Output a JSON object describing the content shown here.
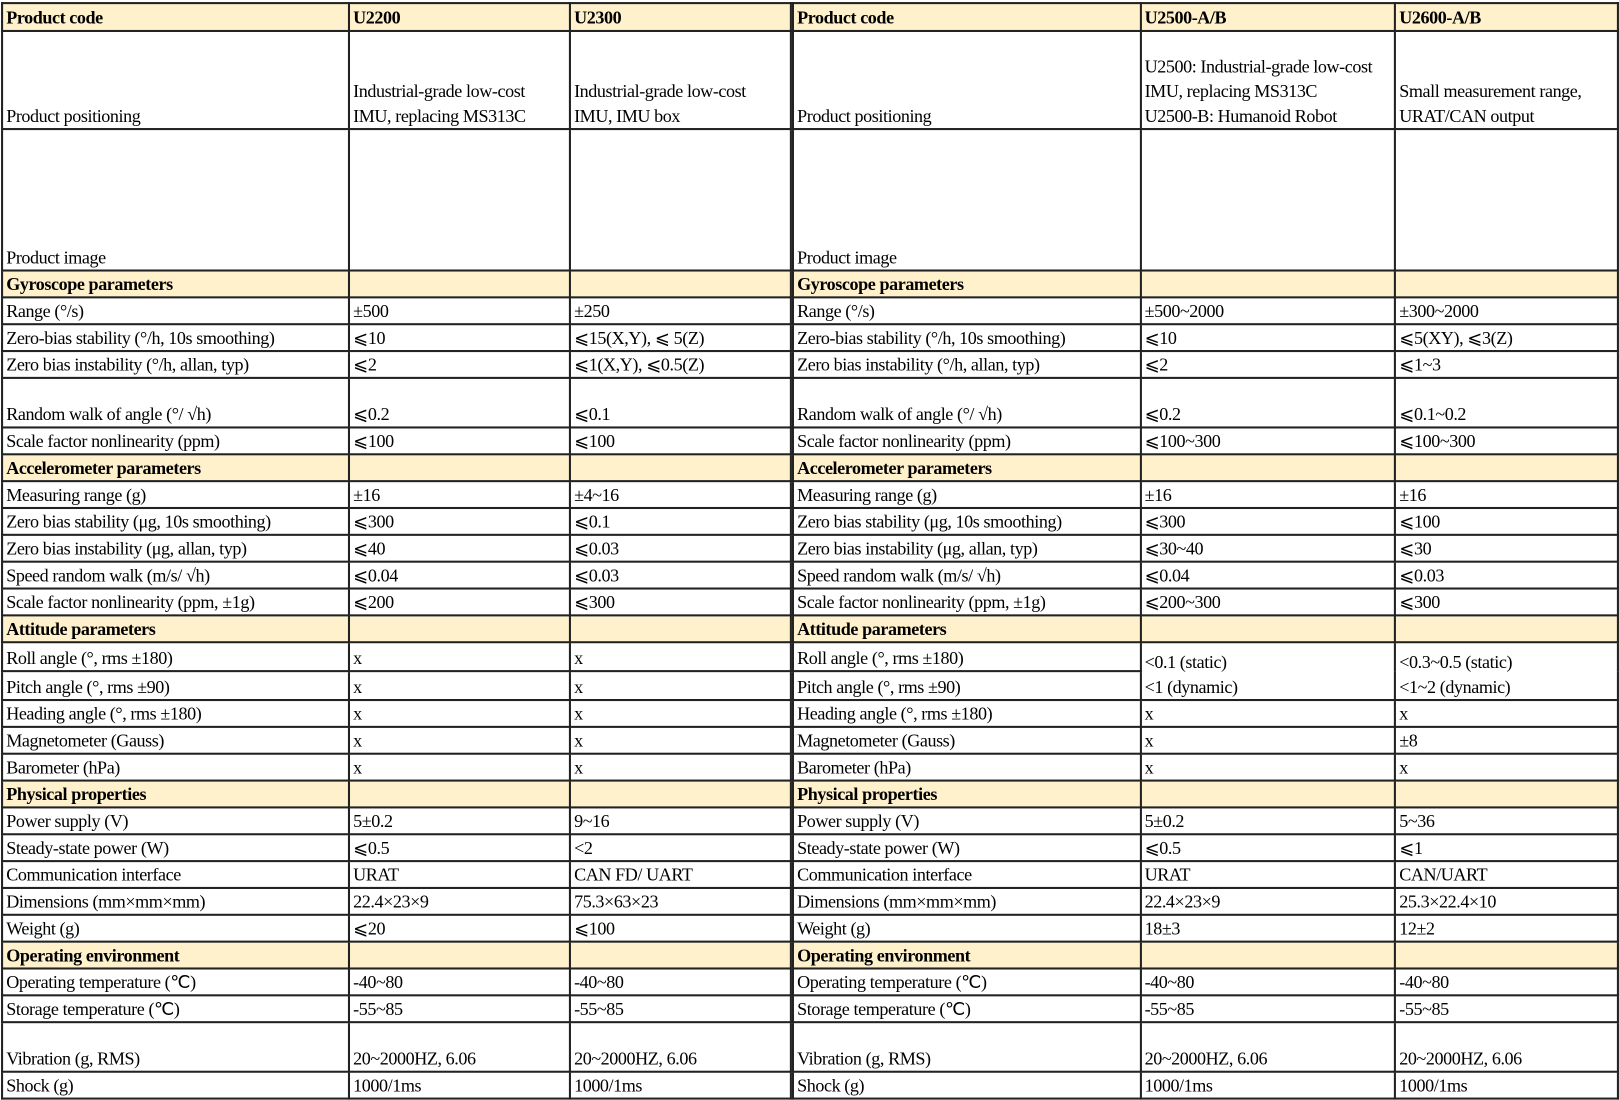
{
  "tables": [
    {
      "id": "left",
      "header": [
        "Product code",
        "U2200",
        "U2300"
      ],
      "positioning": {
        "label": "Product positioning",
        "values": [
          "Industrial-grade low-cost IMU, replacing MS313C",
          "Industrial-grade low-cost IMU, IMU box"
        ]
      },
      "image": {
        "label": "Product image",
        "values": [
          "imu-metal",
          "imu-box"
        ]
      },
      "rows": [
        {
          "type": "section",
          "label": "Gyroscope parameters"
        },
        {
          "label": "Range (°/s)",
          "values": [
            "±500",
            "±250"
          ]
        },
        {
          "label": "Zero-bias stability (°/h, 10s smoothing)",
          "values": [
            "⩽10",
            "⩽15(X,Y), ⩽ 5(Z)"
          ]
        },
        {
          "label": "Zero bias instability (°/h, allan, typ)",
          "values": [
            "⩽2",
            "⩽1(X,Y), ⩽0.5(Z)"
          ]
        },
        {
          "label": "Random walk of angle (°/ √h)",
          "values": [
            "⩽0.2",
            "⩽0.1"
          ],
          "tall": true
        },
        {
          "label": "Scale factor nonlinearity (ppm)",
          "values": [
            "⩽100",
            "⩽100"
          ]
        },
        {
          "type": "section",
          "label": "Accelerometer parameters"
        },
        {
          "label": "Measuring range (g)",
          "values": [
            "±16",
            "±4~16"
          ]
        },
        {
          "label": "Zero bias stability (μg, 10s smoothing)",
          "values": [
            "⩽300",
            "⩽0.1"
          ]
        },
        {
          "label": "Zero bias instability (μg, allan, typ)",
          "values": [
            "⩽40",
            "⩽0.03"
          ]
        },
        {
          "label": "Speed random walk (m/s/ √h)",
          "values": [
            "⩽0.04",
            "⩽0.03"
          ]
        },
        {
          "label": "Scale factor nonlinearity (ppm, ±1g)",
          "values": [
            "⩽200",
            "⩽300"
          ]
        },
        {
          "type": "section",
          "label": "Attitude parameters"
        },
        {
          "label": "Roll angle (°, rms ±180)",
          "values": [
            "x",
            "x"
          ]
        },
        {
          "label": "Pitch angle (°, rms ±90)",
          "values": [
            "x",
            "x"
          ]
        },
        {
          "label": "Heading angle (°, rms ±180)",
          "values": [
            "x",
            "x"
          ]
        },
        {
          "label": "Magnetometer (Gauss)",
          "values": [
            "x",
            "x"
          ]
        },
        {
          "label": "Barometer (hPa)",
          "values": [
            "x",
            "x"
          ]
        },
        {
          "type": "section",
          "label": "Physical properties"
        },
        {
          "label": "Power supply (V)",
          "values": [
            "5±0.2",
            "9~16"
          ]
        },
        {
          "label": "Steady-state power (W)",
          "values": [
            "⩽0.5",
            "<2"
          ]
        },
        {
          "label": "Communication interface",
          "values": [
            "URAT",
            "CAN FD/ UART"
          ]
        },
        {
          "label": "Dimensions (mm×mm×mm)",
          "values": [
            "22.4×23×9",
            "75.3×63×23"
          ]
        },
        {
          "label": "Weight (g)",
          "values": [
            "⩽20",
            "⩽100"
          ]
        },
        {
          "type": "section",
          "label": "Operating environment"
        },
        {
          "label": "Operating temperature (℃)",
          "values": [
            "-40~80",
            "-40~80"
          ]
        },
        {
          "label": "Storage temperature (℃)",
          "values": [
            "-55~85",
            "-55~85"
          ]
        },
        {
          "label": "Vibration (g, RMS)",
          "values": [
            "20~2000HZ,  6.06",
            "20~2000HZ,  6.06"
          ],
          "tall": true
        },
        {
          "label": "Shock (g)",
          "values": [
            "1000/1ms",
            "1000/1ms"
          ]
        }
      ]
    },
    {
      "id": "right",
      "header": [
        "Product code",
        "U2500-A/B",
        "U2600-A/B"
      ],
      "positioning": {
        "label": "Product positioning",
        "values": [
          "U2500: Industrial-grade low-cost IMU, replacing MS313C\nU2500-B: Humanoid Robot",
          "Small measurement range, URAT/CAN output"
        ]
      },
      "image": {
        "label": "Product image",
        "values": [
          "imu-metal",
          "imu-white"
        ]
      },
      "rows": [
        {
          "type": "section",
          "label": "Gyroscope parameters"
        },
        {
          "label": "Range (°/s)",
          "values": [
            "±500~2000",
            "±300~2000"
          ]
        },
        {
          "label": "Zero-bias stability (°/h, 10s smoothing)",
          "values": [
            "⩽10",
            "⩽5(XY), ⩽3(Z)"
          ]
        },
        {
          "label": "Zero bias instability (°/h, allan, typ)",
          "values": [
            "⩽2",
            "⩽1~3"
          ]
        },
        {
          "label": "Random walk of angle (°/ √h)",
          "values": [
            "⩽0.2",
            "⩽0.1~0.2"
          ],
          "tall": true
        },
        {
          "label": "Scale factor nonlinearity (ppm)",
          "values": [
            "⩽100~300",
            "⩽100~300"
          ]
        },
        {
          "type": "section",
          "label": "Accelerometer parameters"
        },
        {
          "label": "Measuring range (g)",
          "values": [
            "±16",
            "±16"
          ]
        },
        {
          "label": "Zero bias stability (μg, 10s smoothing)",
          "values": [
            "⩽300",
            "⩽100"
          ]
        },
        {
          "label": "Zero bias instability (μg, allan, typ)",
          "values": [
            "⩽30~40",
            "⩽30"
          ]
        },
        {
          "label": "Speed random walk (m/s/ √h)",
          "values": [
            "⩽0.04",
            "⩽0.03"
          ]
        },
        {
          "label": "Scale factor nonlinearity (ppm, ±1g)",
          "values": [
            "⩽200~300",
            "⩽300"
          ]
        },
        {
          "type": "section",
          "label": "Attitude parameters"
        },
        {
          "label": "Roll angle (°, rms ±180)",
          "values": [
            "<0.1 (static)\n<1 (dynamic)",
            "<0.3~0.5 (static)\n<1~2 (dynamic)"
          ]
        },
        {
          "label": "Pitch angle (°, rms ±90)",
          "values": [
            null,
            null
          ]
        },
        {
          "label": "Heading angle (°, rms ±180)",
          "values": [
            "x",
            "x"
          ]
        },
        {
          "label": "Magnetometer (Gauss)",
          "values": [
            "x",
            "±8"
          ]
        },
        {
          "label": "Barometer (hPa)",
          "values": [
            "x",
            "x"
          ]
        },
        {
          "type": "section",
          "label": "Physical properties"
        },
        {
          "label": "Power supply (V)",
          "values": [
            "5±0.2",
            "5~36"
          ]
        },
        {
          "label": "Steady-state power (W)",
          "values": [
            "⩽0.5",
            "⩽1"
          ]
        },
        {
          "label": "Communication interface",
          "values": [
            "URAT",
            "CAN/UART"
          ]
        },
        {
          "label": "Dimensions (mm×mm×mm)",
          "values": [
            "22.4×23×9",
            "25.3×22.4×10"
          ]
        },
        {
          "label": "Weight (g)",
          "values": [
            "18±3",
            "12±2"
          ]
        },
        {
          "type": "section",
          "label": "Operating environment"
        },
        {
          "label": "Operating temperature (℃)",
          "values": [
            "-40~80",
            "-40~80"
          ]
        },
        {
          "label": "Storage temperature (℃)",
          "values": [
            "-55~85",
            "-55~85"
          ]
        },
        {
          "label": "Vibration (g, RMS)",
          "values": [
            "20~2000HZ,  6.06",
            "20~2000HZ,  6.06"
          ],
          "tall": true
        },
        {
          "label": "Shock (g)",
          "values": [
            "1000/1ms",
            "1000/1ms"
          ]
        }
      ]
    }
  ],
  "colors": {
    "section_bg": "#fff1cc",
    "border": "#222222"
  }
}
